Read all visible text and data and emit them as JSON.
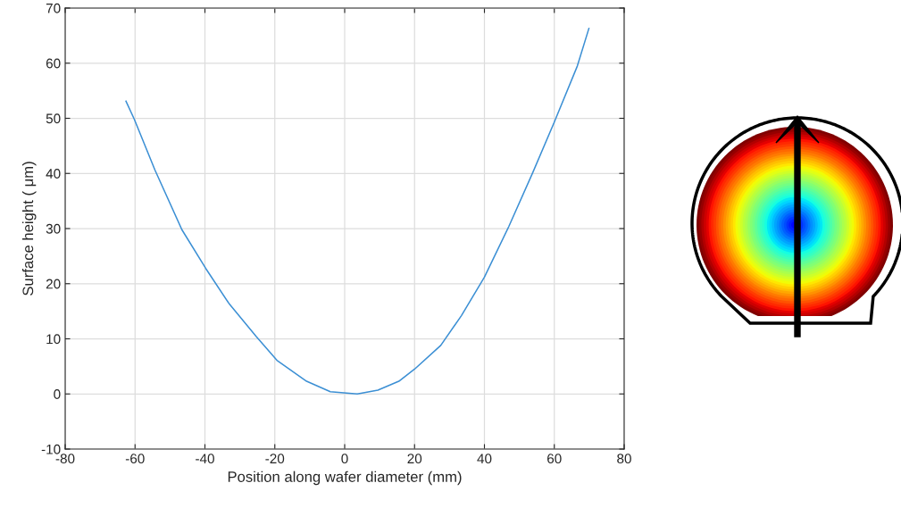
{
  "chart_data": {
    "type": "line",
    "xlabel": "Position along wafer diameter (mm)",
    "ylabel": "Surface height ( μm)",
    "xlim": [
      -80,
      80
    ],
    "xticks": [
      -80,
      -60,
      -40,
      -20,
      0,
      20,
      40,
      60,
      80
    ],
    "ylim": [
      -10,
      70
    ],
    "yticks": [
      -10,
      0,
      10,
      20,
      30,
      40,
      50,
      60,
      70
    ],
    "grid": true,
    "series": [
      {
        "color": "#3b8fd4",
        "x": [
          -62.6,
          -60.2,
          -54.3,
          -46.6,
          -39.8,
          -33.0,
          -25.3,
          -19.4,
          -10.9,
          -4.1,
          3.6,
          9.5,
          15.5,
          20,
          27.5,
          33.4,
          40,
          47.0,
          53.8,
          60,
          66.6,
          69.9
        ],
        "values": [
          53.1,
          49.8,
          40.6,
          29.8,
          22.8,
          16.3,
          10.4,
          6.1,
          2.3,
          0.4,
          0,
          0.7,
          2.3,
          4.5,
          8.8,
          14.2,
          21.2,
          30.4,
          40.1,
          49.3,
          59.5,
          66.3
        ]
      }
    ]
  }
}
